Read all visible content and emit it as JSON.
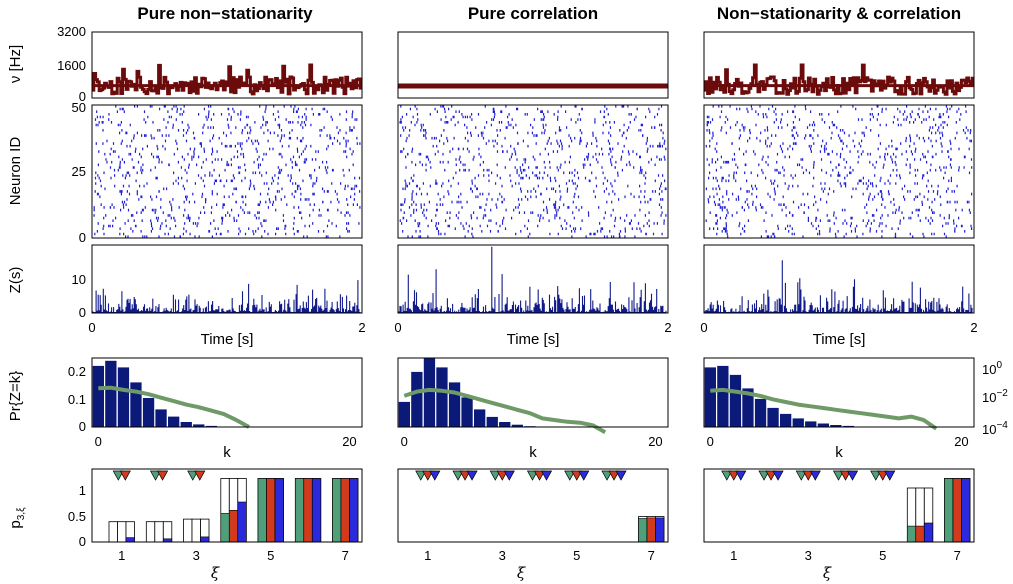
{
  "chart_data": {
    "type": "figure",
    "columns": [
      {
        "title": "Pure non−stationarity",
        "rate": {
          "mode": "fluctuating",
          "mean": 600,
          "amp": 420,
          "seed": 11
        },
        "raster": {
          "neurons": 50,
          "spikes_per_neuron": 18,
          "seed": 21
        },
        "z": {
          "base": 1.6,
          "seed": 31
        },
        "pr_bars": [
          0.205,
          0.222,
          0.2,
          0.15,
          0.098,
          0.06,
          0.036,
          0.018,
          0.01,
          0.005,
          0.002,
          0.001
        ],
        "pr_log": [
          -1.75,
          -1.72,
          -1.85,
          -1.95,
          -2.1,
          -2.3,
          -2.5,
          -2.7,
          -2.85,
          -3.05,
          -3.25,
          -3.6,
          -4.0
        ],
        "p3": [
          {
            "xi": 1,
            "outline": 0.32,
            "green": 0.0,
            "red": 0.0,
            "blue": 0.07
          },
          {
            "xi": 2,
            "outline": 0.32,
            "green": 0.0,
            "red": 0.0,
            "blue": 0.05
          },
          {
            "xi": 3,
            "outline": 0.36,
            "green": 0.0,
            "red": 0.0,
            "blue": 0.08
          },
          {
            "xi": 4,
            "outline": 1.0,
            "green": 0.45,
            "red": 0.5,
            "blue": 0.63
          },
          {
            "xi": 5,
            "outline": 1.0,
            "green": 1.0,
            "red": 1.0,
            "blue": 1.0
          },
          {
            "xi": 6,
            "outline": 1.0,
            "green": 1.0,
            "red": 1.0,
            "blue": 1.0
          },
          {
            "xi": 7,
            "outline": 1.0,
            "green": 1.0,
            "red": 1.0,
            "blue": 1.0
          }
        ],
        "markers": [
          1,
          2,
          3
        ],
        "marker_colors": [
          "green",
          "red"
        ],
        "xi_ticks": [
          "1",
          "3",
          "5",
          "7"
        ]
      },
      {
        "title": "Pure correlation",
        "rate": {
          "mode": "flat",
          "mean": 580,
          "amp": 0,
          "seed": 12
        },
        "raster": {
          "neurons": 50,
          "spikes_per_neuron": 18,
          "seed": 22
        },
        "z": {
          "base": 1.6,
          "seed": 32
        },
        "pr_bars": [
          0.085,
          0.185,
          0.23,
          0.2,
          0.15,
          0.1,
          0.06,
          0.035,
          0.018,
          0.009,
          0.004,
          0.002
        ],
        "pr_log": [
          -2.2,
          -1.95,
          -1.85,
          -1.9,
          -2.0,
          -2.2,
          -2.4,
          -2.6,
          -2.8,
          -3.0,
          -3.2,
          -3.5,
          -3.6,
          -3.7,
          -3.75,
          -3.9,
          -4.3
        ],
        "p3": [
          {
            "xi": 1,
            "outline": 0.0,
            "green": 0.0,
            "red": 0.0,
            "blue": 0.0
          },
          {
            "xi": 2,
            "outline": 0.0,
            "green": 0.0,
            "red": 0.0,
            "blue": 0.0
          },
          {
            "xi": 3,
            "outline": 0.0,
            "green": 0.0,
            "red": 0.0,
            "blue": 0.0
          },
          {
            "xi": 4,
            "outline": 0.0,
            "green": 0.0,
            "red": 0.0,
            "blue": 0.0
          },
          {
            "xi": 5,
            "outline": 0.0,
            "green": 0.0,
            "red": 0.0,
            "blue": 0.0
          },
          {
            "xi": 6,
            "outline": 0.0,
            "green": 0.0,
            "red": 0.0,
            "blue": 0.0
          },
          {
            "xi": 7,
            "outline": 0.4,
            "green": 0.37,
            "red": 0.38,
            "blue": 0.38
          }
        ],
        "markers": [
          1,
          2,
          3,
          4,
          5,
          6
        ],
        "marker_colors": [
          "green",
          "red",
          "blue"
        ],
        "xi_ticks": [
          "1",
          "3",
          "5",
          "7"
        ]
      },
      {
        "title": "Non−stationarity & correlation",
        "rate": {
          "mode": "fluctuating",
          "mean": 600,
          "amp": 420,
          "seed": 13
        },
        "raster": {
          "neurons": 50,
          "spikes_per_neuron": 18,
          "seed": 23
        },
        "z": {
          "base": 1.7,
          "seed": 33
        },
        "pr_bars": [
          0.2,
          0.205,
          0.175,
          0.13,
          0.095,
          0.065,
          0.045,
          0.03,
          0.02,
          0.013,
          0.008,
          0.005
        ],
        "pr_log": [
          -1.9,
          -1.85,
          -1.95,
          -2.05,
          -2.2,
          -2.4,
          -2.55,
          -2.7,
          -2.8,
          -2.9,
          -3.0,
          -3.1,
          -3.2,
          -3.3,
          -3.4,
          -3.5,
          -3.4,
          -3.6,
          -4.1
        ],
        "p3": [
          {
            "xi": 1,
            "outline": 0.0,
            "green": 0.0,
            "red": 0.0,
            "blue": 0.0
          },
          {
            "xi": 2,
            "outline": 0.0,
            "green": 0.0,
            "red": 0.0,
            "blue": 0.0
          },
          {
            "xi": 3,
            "outline": 0.0,
            "green": 0.0,
            "red": 0.0,
            "blue": 0.0
          },
          {
            "xi": 4,
            "outline": 0.0,
            "green": 0.0,
            "red": 0.0,
            "blue": 0.0
          },
          {
            "xi": 5,
            "outline": 0.0,
            "green": 0.0,
            "red": 0.0,
            "blue": 0.0
          },
          {
            "xi": 6,
            "outline": 0.85,
            "green": 0.25,
            "red": 0.25,
            "blue": 0.3
          },
          {
            "xi": 7,
            "outline": 1.0,
            "green": 1.0,
            "red": 1.0,
            "blue": 1.0
          }
        ],
        "markers": [
          1,
          2,
          3,
          4,
          5
        ],
        "marker_colors": [
          "green",
          "red",
          "blue"
        ],
        "xi_ticks": [
          "1",
          "3",
          "5",
          "7"
        ]
      }
    ],
    "row_labels": {
      "rate": "ν [Hz]",
      "raster": "Neuron ID",
      "z": "Z(s)",
      "pr": "Pr{Z=k}",
      "p3": "p"
    },
    "p3_subscript": "3,ξ",
    "rate_yticks": [
      "3200",
      "1600",
      "0"
    ],
    "rate_ylim": [
      0,
      3200
    ],
    "raster_yticks": [
      "50",
      "25",
      "0"
    ],
    "z_yticks": [
      "10",
      "0"
    ],
    "z_ylim": [
      0,
      20
    ],
    "time_xticks": [
      "0",
      "2"
    ],
    "time_xlabel": "Time [s]",
    "pr_yticks": [
      "0.2",
      "0.1",
      "0"
    ],
    "pr_ylim": [
      0,
      0.23
    ],
    "pr_xticks": [
      "0",
      "20"
    ],
    "pr_xlim": [
      -0.5,
      21
    ],
    "pr_xlabel": "k",
    "log_yticks": [
      {
        "base": "10",
        "exp": "0"
      },
      {
        "base": "10",
        "exp": "−2"
      },
      {
        "base": "10",
        "exp": "−4"
      }
    ],
    "log_ylim": [
      -4,
      0
    ],
    "p3_yticks": [
      "1",
      "0.5",
      "0"
    ],
    "p3_ylim": [
      0,
      1.15
    ],
    "xi_label": "ξ",
    "colors": {
      "rate_line": "#6b0b0b",
      "raster": "#1f1fd6",
      "z": "#101a8a",
      "pr_bar": "#0b1a78",
      "pr_log_line": "#6f9a68",
      "green": "#4f9f7a",
      "red": "#d23a1e",
      "blue": "#2a2adc"
    }
  }
}
